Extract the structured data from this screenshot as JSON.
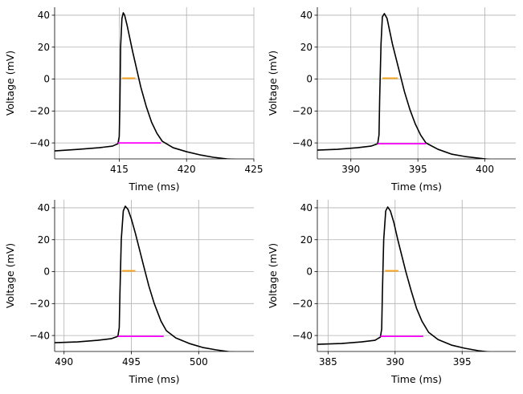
{
  "chart_data": [
    {
      "type": "line",
      "title": "",
      "xlabel": "Time (ms)",
      "ylabel": "Voltage (mV)",
      "xlim": [
        410.2,
        425
      ],
      "ylim": [
        -50,
        45
      ],
      "xticks": [
        415,
        420,
        425
      ],
      "yticks": [
        -40,
        -20,
        0,
        20,
        40
      ],
      "grid": true,
      "series": [
        {
          "name": "voltage",
          "color": "#000000",
          "x": [
            410.2,
            412,
            413.5,
            414.5,
            414.9,
            415.0,
            415.05,
            415.1,
            415.2,
            415.3,
            415.4,
            415.6,
            415.8,
            416.0,
            416.3,
            416.6,
            417.0,
            417.4,
            417.8,
            418.2,
            419,
            420,
            421,
            422,
            423,
            424,
            424.5
          ],
          "y": [
            -45,
            -44,
            -43,
            -42,
            -40.5,
            -36,
            -15,
            20,
            38,
            41.5,
            40,
            33,
            25,
            17,
            6,
            -5,
            -17,
            -27,
            -34,
            -39,
            -43,
            -45.5,
            -47.5,
            -49,
            -50,
            -50.5,
            -50.5
          ]
        }
      ],
      "spike_onset_line": {
        "y": -40,
        "x": [
          414.9,
          418.1
        ],
        "color": "#ff00ff"
      },
      "half_width_line": {
        "y": 0.5,
        "x": [
          415.2,
          416.2
        ],
        "color": "#f5a623"
      }
    },
    {
      "type": "line",
      "title": "",
      "xlabel": "Time (ms)",
      "ylabel": "Voltage (mV)",
      "xlim": [
        387.5,
        402.3
      ],
      "ylim": [
        -50,
        45
      ],
      "xticks": [
        390,
        395,
        400
      ],
      "yticks": [
        -40,
        -20,
        0,
        20,
        40
      ],
      "grid": true,
      "series": [
        {
          "name": "voltage",
          "color": "#000000",
          "x": [
            387.5,
            389,
            390.5,
            391.5,
            392.0,
            392.1,
            392.15,
            392.25,
            392.35,
            392.5,
            392.7,
            392.9,
            393.1,
            393.4,
            393.7,
            394.0,
            394.4,
            394.8,
            395.2,
            395.6,
            396.5,
            397.5,
            398.5,
            399.5,
            400.5,
            401.5
          ],
          "y": [
            -44.5,
            -44,
            -43,
            -42,
            -40.5,
            -35,
            -12,
            22,
            39,
            41,
            38,
            30,
            22,
            12,
            2,
            -8,
            -19,
            -28,
            -35,
            -40,
            -44,
            -47,
            -48.5,
            -49.5,
            -50.5,
            -51
          ]
        }
      ],
      "spike_onset_line": {
        "y": -40.5,
        "x": [
          392.0,
          395.6
        ],
        "color": "#ff00ff"
      },
      "half_width_line": {
        "y": 0.5,
        "x": [
          392.35,
          393.5
        ],
        "color": "#f5a623"
      }
    },
    {
      "type": "line",
      "title": "",
      "xlabel": "Time (ms)",
      "ylabel": "Voltage (mV)",
      "xlim": [
        489.3,
        504.1
      ],
      "ylim": [
        -50,
        45
      ],
      "xticks": [
        490,
        495,
        500
      ],
      "yticks": [
        -40,
        -20,
        0,
        20,
        40
      ],
      "grid": true,
      "series": [
        {
          "name": "voltage",
          "color": "#000000",
          "x": [
            489.3,
            491,
            492.5,
            493.5,
            494.0,
            494.1,
            494.15,
            494.25,
            494.4,
            494.55,
            494.75,
            495.0,
            495.3,
            495.6,
            495.9,
            496.3,
            496.7,
            497.2,
            497.6,
            498.3,
            499.3,
            500.3,
            501.3,
            502.3,
            503
          ],
          "y": [
            -44.5,
            -44,
            -43,
            -42,
            -40.5,
            -35,
            -14,
            20,
            38,
            41,
            39,
            33,
            24,
            14,
            4,
            -9,
            -20,
            -31,
            -37,
            -41.5,
            -45,
            -47.5,
            -49,
            -50.2,
            -50.5
          ]
        }
      ],
      "spike_onset_line": {
        "y": -40.5,
        "x": [
          494.0,
          497.4
        ],
        "color": "#ff00ff"
      },
      "half_width_line": {
        "y": 0.5,
        "x": [
          494.3,
          495.3
        ],
        "color": "#f5a623"
      }
    },
    {
      "type": "line",
      "title": "",
      "xlabel": "Time (ms)",
      "ylabel": "Voltage (mV)",
      "xlim": [
        384.2,
        399
      ],
      "ylim": [
        -50,
        45
      ],
      "xticks": [
        385,
        390,
        395
      ],
      "yticks": [
        -40,
        -20,
        0,
        20,
        40
      ],
      "grid": true,
      "series": [
        {
          "name": "voltage",
          "color": "#000000",
          "x": [
            384.2,
            386,
            387.5,
            388.5,
            388.9,
            389.0,
            389.05,
            389.15,
            389.3,
            389.45,
            389.65,
            389.9,
            390.2,
            390.5,
            390.8,
            391.2,
            391.6,
            392.0,
            392.5,
            393.2,
            394.2,
            395.2,
            396.2,
            397.2
          ],
          "y": [
            -45.5,
            -45,
            -44,
            -43,
            -41,
            -36,
            -14,
            20,
            38,
            40.5,
            38,
            31,
            20,
            10,
            0,
            -12,
            -23,
            -31,
            -38,
            -42.5,
            -46,
            -48,
            -49.5,
            -50.5
          ]
        }
      ],
      "spike_onset_line": {
        "y": -40.5,
        "x": [
          388.9,
          392.1
        ],
        "color": "#ff00ff"
      },
      "half_width_line": {
        "y": 0.5,
        "x": [
          389.25,
          390.25
        ],
        "color": "#f5a623"
      }
    }
  ]
}
